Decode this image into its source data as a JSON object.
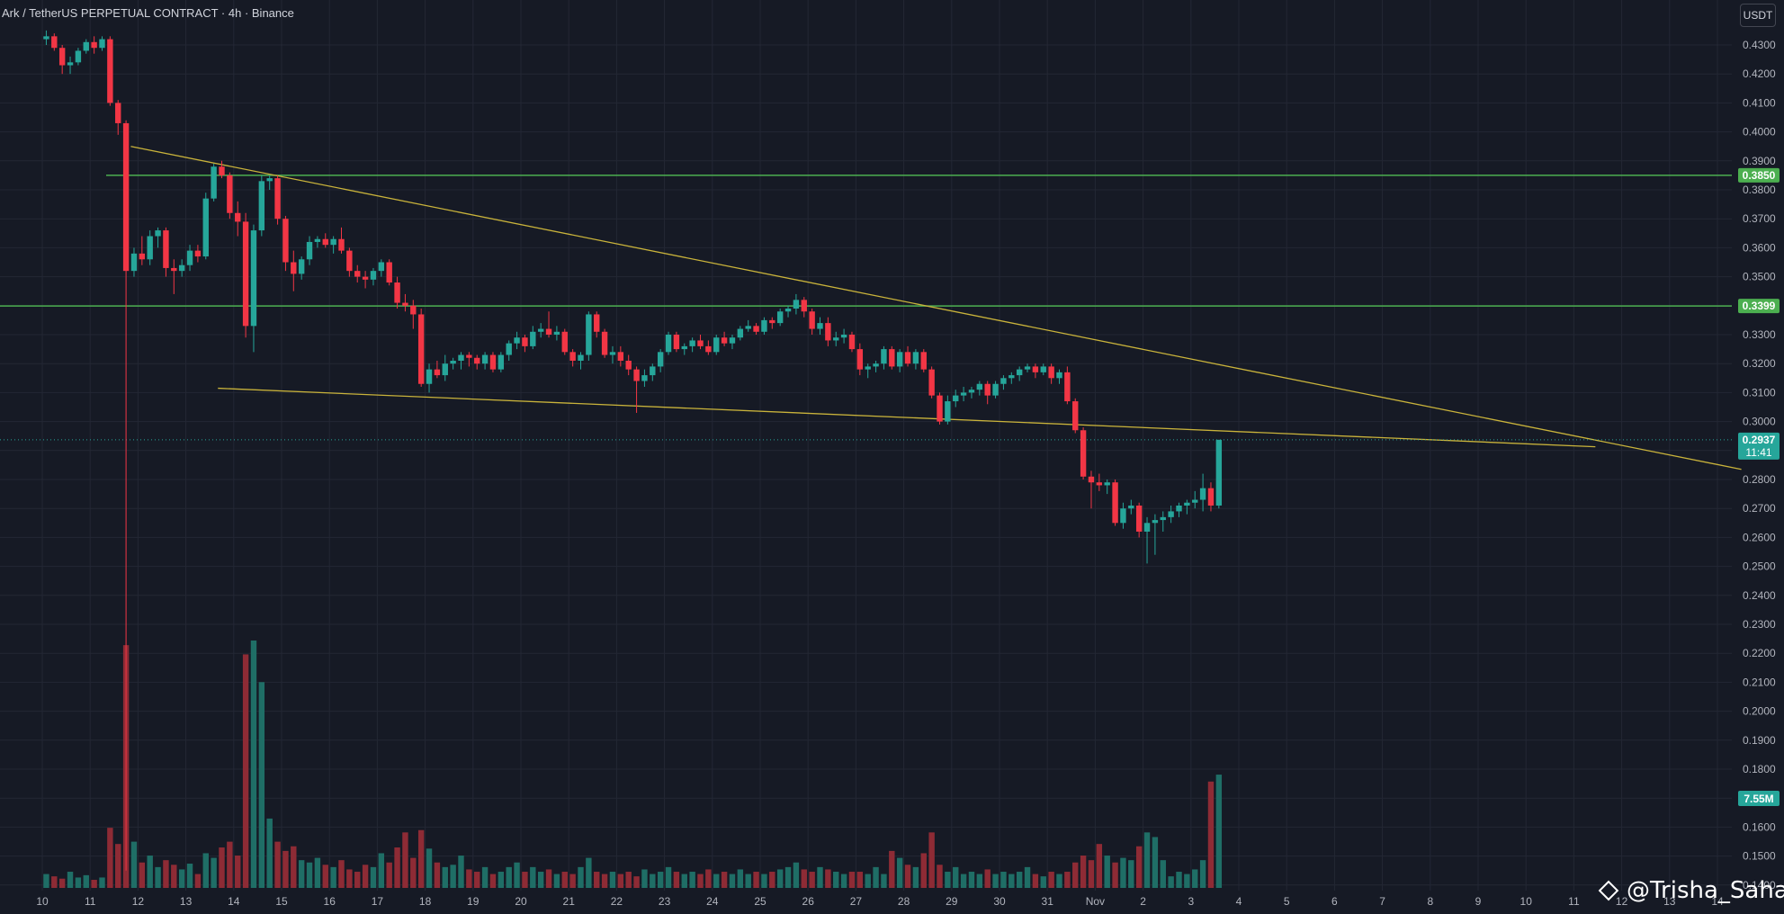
{
  "header": {
    "title": "Ark / TetherUS PERPETUAL CONTRACT · 4h · Binance"
  },
  "currency_badge": "USDT",
  "watermark": "@Trisha_Saha",
  "colors": {
    "background": "#161a25",
    "grid": "#232734",
    "up": "#26a69a",
    "down": "#f23645",
    "vol_up": "#1f6e66",
    "vol_down": "#8e2b35",
    "trendline": "#c9b33b",
    "level": "#4caf50",
    "axis_text": "#b2b5be",
    "current_price": "#26a69a"
  },
  "chart_data": {
    "type": "candlestick",
    "timeframe": "4h",
    "price_axis": {
      "ticks": [
        "0.4300",
        "0.4200",
        "0.4100",
        "0.4000",
        "0.3900",
        "0.3800",
        "0.3700",
        "0.3600",
        "0.3500",
        "0.3400",
        "0.3300",
        "0.3200",
        "0.3100",
        "0.3000",
        "0.2900",
        "0.2800",
        "0.2700",
        "0.2600",
        "0.2500",
        "0.2400",
        "0.2300",
        "0.2200",
        "0.2100",
        "0.2000",
        "0.1900",
        "0.1800",
        "0.1700",
        "0.1600",
        "0.1500",
        "0.1400"
      ],
      "range": [
        0.14,
        0.435
      ]
    },
    "time_axis": {
      "ticks": [
        "10",
        "11",
        "12",
        "13",
        "14",
        "15",
        "16",
        "17",
        "18",
        "19",
        "20",
        "21",
        "22",
        "23",
        "24",
        "25",
        "26",
        "27",
        "28",
        "29",
        "30",
        "31",
        "Nov",
        "2",
        "3",
        "4",
        "5",
        "6",
        "7",
        "8",
        "9",
        "10",
        "11",
        "12",
        "13",
        "14"
      ]
    },
    "levels": [
      {
        "price": 0.385,
        "label": "0.3850"
      },
      {
        "price": 0.3399,
        "label": "0.3399"
      }
    ],
    "current_price": {
      "value": 0.2937,
      "label": "0.2937",
      "countdown": "11:41"
    },
    "volume_label": "7.55M",
    "trendlines": [
      {
        "from": [
          1.85,
          0.395
        ],
        "to": [
          35.5,
          0.2835
        ]
      },
      {
        "from": [
          3.67,
          0.3115
        ],
        "to": [
          32.45,
          0.2913
        ]
      }
    ],
    "candles": [
      [
        0.432,
        0.435,
        0.43,
        0.433
      ],
      [
        0.433,
        0.434,
        0.428,
        0.429
      ],
      [
        0.429,
        0.43,
        0.42,
        0.423
      ],
      [
        0.423,
        0.426,
        0.42,
        0.424
      ],
      [
        0.424,
        0.429,
        0.423,
        0.428
      ],
      [
        0.428,
        0.432,
        0.427,
        0.431
      ],
      [
        0.431,
        0.433,
        0.427,
        0.429
      ],
      [
        0.429,
        0.433,
        0.428,
        0.432
      ],
      [
        0.432,
        0.433,
        0.409,
        0.41
      ],
      [
        0.41,
        0.411,
        0.399,
        0.403
      ],
      [
        0.403,
        0.404,
        0.145,
        0.352
      ],
      [
        0.352,
        0.36,
        0.35,
        0.358
      ],
      [
        0.358,
        0.364,
        0.354,
        0.356
      ],
      [
        0.356,
        0.366,
        0.354,
        0.364
      ],
      [
        0.364,
        0.367,
        0.36,
        0.366
      ],
      [
        0.366,
        0.367,
        0.35,
        0.353
      ],
      [
        0.353,
        0.356,
        0.344,
        0.352
      ],
      [
        0.352,
        0.356,
        0.35,
        0.354
      ],
      [
        0.354,
        0.361,
        0.352,
        0.359
      ],
      [
        0.359,
        0.361,
        0.355,
        0.357
      ],
      [
        0.357,
        0.379,
        0.356,
        0.377
      ],
      [
        0.377,
        0.389,
        0.376,
        0.388
      ],
      [
        0.388,
        0.39,
        0.384,
        0.385
      ],
      [
        0.385,
        0.386,
        0.37,
        0.372
      ],
      [
        0.372,
        0.376,
        0.364,
        0.369
      ],
      [
        0.369,
        0.372,
        0.329,
        0.333
      ],
      [
        0.333,
        0.368,
        0.324,
        0.366
      ],
      [
        0.366,
        0.385,
        0.364,
        0.383
      ],
      [
        0.383,
        0.385,
        0.38,
        0.384
      ],
      [
        0.384,
        0.385,
        0.368,
        0.37
      ],
      [
        0.37,
        0.371,
        0.352,
        0.355
      ],
      [
        0.355,
        0.359,
        0.345,
        0.351
      ],
      [
        0.351,
        0.357,
        0.349,
        0.356
      ],
      [
        0.356,
        0.364,
        0.354,
        0.362
      ],
      [
        0.362,
        0.364,
        0.36,
        0.363
      ],
      [
        0.363,
        0.365,
        0.36,
        0.361
      ],
      [
        0.361,
        0.364,
        0.358,
        0.363
      ],
      [
        0.363,
        0.367,
        0.358,
        0.359
      ],
      [
        0.359,
        0.36,
        0.35,
        0.352
      ],
      [
        0.352,
        0.354,
        0.348,
        0.35
      ],
      [
        0.35,
        0.352,
        0.346,
        0.349
      ],
      [
        0.349,
        0.353,
        0.347,
        0.352
      ],
      [
        0.352,
        0.356,
        0.35,
        0.355
      ],
      [
        0.355,
        0.356,
        0.347,
        0.348
      ],
      [
        0.348,
        0.35,
        0.339,
        0.341
      ],
      [
        0.341,
        0.344,
        0.338,
        0.34
      ],
      [
        0.34,
        0.342,
        0.332,
        0.337
      ],
      [
        0.337,
        0.339,
        0.312,
        0.313
      ],
      [
        0.313,
        0.32,
        0.31,
        0.318
      ],
      [
        0.318,
        0.321,
        0.315,
        0.316
      ],
      [
        0.316,
        0.323,
        0.314,
        0.32
      ],
      [
        0.32,
        0.322,
        0.318,
        0.321
      ],
      [
        0.321,
        0.324,
        0.318,
        0.323
      ],
      [
        0.323,
        0.324,
        0.319,
        0.322
      ],
      [
        0.322,
        0.323,
        0.318,
        0.32
      ],
      [
        0.32,
        0.324,
        0.318,
        0.323
      ],
      [
        0.323,
        0.324,
        0.317,
        0.318
      ],
      [
        0.318,
        0.324,
        0.317,
        0.323
      ],
      [
        0.323,
        0.328,
        0.321,
        0.327
      ],
      [
        0.327,
        0.331,
        0.325,
        0.329
      ],
      [
        0.329,
        0.33,
        0.324,
        0.326
      ],
      [
        0.326,
        0.333,
        0.325,
        0.331
      ],
      [
        0.331,
        0.334,
        0.329,
        0.332
      ],
      [
        0.332,
        0.338,
        0.329,
        0.33
      ],
      [
        0.33,
        0.333,
        0.328,
        0.331
      ],
      [
        0.331,
        0.332,
        0.323,
        0.324
      ],
      [
        0.324,
        0.325,
        0.319,
        0.321
      ],
      [
        0.321,
        0.324,
        0.318,
        0.323
      ],
      [
        0.323,
        0.338,
        0.321,
        0.337
      ],
      [
        0.337,
        0.338,
        0.329,
        0.331
      ],
      [
        0.331,
        0.332,
        0.322,
        0.323
      ],
      [
        0.323,
        0.326,
        0.32,
        0.324
      ],
      [
        0.324,
        0.326,
        0.319,
        0.321
      ],
      [
        0.321,
        0.323,
        0.316,
        0.318
      ],
      [
        0.318,
        0.319,
        0.303,
        0.314
      ],
      [
        0.314,
        0.318,
        0.312,
        0.316
      ],
      [
        0.316,
        0.32,
        0.314,
        0.319
      ],
      [
        0.319,
        0.325,
        0.317,
        0.324
      ],
      [
        0.324,
        0.331,
        0.323,
        0.33
      ],
      [
        0.33,
        0.331,
        0.324,
        0.325
      ],
      [
        0.325,
        0.327,
        0.323,
        0.326
      ],
      [
        0.326,
        0.329,
        0.324,
        0.328
      ],
      [
        0.328,
        0.33,
        0.325,
        0.326
      ],
      [
        0.326,
        0.328,
        0.323,
        0.324
      ],
      [
        0.324,
        0.33,
        0.323,
        0.329
      ],
      [
        0.329,
        0.331,
        0.326,
        0.327
      ],
      [
        0.327,
        0.33,
        0.325,
        0.329
      ],
      [
        0.329,
        0.333,
        0.328,
        0.332
      ],
      [
        0.332,
        0.335,
        0.331,
        0.333
      ],
      [
        0.333,
        0.334,
        0.33,
        0.331
      ],
      [
        0.331,
        0.336,
        0.33,
        0.335
      ],
      [
        0.335,
        0.336,
        0.332,
        0.334
      ],
      [
        0.334,
        0.339,
        0.333,
        0.338
      ],
      [
        0.338,
        0.34,
        0.336,
        0.339
      ],
      [
        0.339,
        0.344,
        0.337,
        0.342
      ],
      [
        0.342,
        0.343,
        0.336,
        0.338
      ],
      [
        0.338,
        0.339,
        0.33,
        0.332
      ],
      [
        0.332,
        0.336,
        0.33,
        0.334
      ],
      [
        0.334,
        0.336,
        0.326,
        0.328
      ],
      [
        0.328,
        0.331,
        0.326,
        0.329
      ],
      [
        0.329,
        0.332,
        0.327,
        0.33
      ],
      [
        0.33,
        0.331,
        0.324,
        0.325
      ],
      [
        0.325,
        0.327,
        0.316,
        0.318
      ],
      [
        0.318,
        0.32,
        0.315,
        0.319
      ],
      [
        0.319,
        0.321,
        0.317,
        0.32
      ],
      [
        0.32,
        0.326,
        0.318,
        0.325
      ],
      [
        0.325,
        0.326,
        0.318,
        0.319
      ],
      [
        0.319,
        0.325,
        0.317,
        0.324
      ],
      [
        0.324,
        0.326,
        0.319,
        0.32
      ],
      [
        0.32,
        0.325,
        0.318,
        0.324
      ],
      [
        0.324,
        0.325,
        0.317,
        0.318
      ],
      [
        0.318,
        0.319,
        0.308,
        0.309
      ],
      [
        0.309,
        0.31,
        0.299,
        0.3
      ],
      [
        0.3,
        0.309,
        0.299,
        0.307
      ],
      [
        0.307,
        0.311,
        0.305,
        0.309
      ],
      [
        0.309,
        0.312,
        0.307,
        0.31
      ],
      [
        0.31,
        0.312,
        0.308,
        0.311
      ],
      [
        0.311,
        0.314,
        0.309,
        0.313
      ],
      [
        0.313,
        0.314,
        0.306,
        0.309
      ],
      [
        0.309,
        0.314,
        0.308,
        0.313
      ],
      [
        0.313,
        0.316,
        0.311,
        0.315
      ],
      [
        0.315,
        0.317,
        0.313,
        0.316
      ],
      [
        0.316,
        0.319,
        0.314,
        0.318
      ],
      [
        0.318,
        0.32,
        0.317,
        0.319
      ],
      [
        0.319,
        0.32,
        0.315,
        0.317
      ],
      [
        0.317,
        0.32,
        0.316,
        0.319
      ],
      [
        0.319,
        0.32,
        0.313,
        0.315
      ],
      [
        0.315,
        0.318,
        0.313,
        0.317
      ],
      [
        0.317,
        0.319,
        0.306,
        0.307
      ],
      [
        0.307,
        0.308,
        0.296,
        0.297
      ],
      [
        0.297,
        0.298,
        0.28,
        0.281
      ],
      [
        0.281,
        0.283,
        0.27,
        0.279
      ],
      [
        0.279,
        0.282,
        0.276,
        0.278
      ],
      [
        0.278,
        0.28,
        0.275,
        0.279
      ],
      [
        0.279,
        0.28,
        0.264,
        0.265
      ],
      [
        0.265,
        0.272,
        0.263,
        0.27
      ],
      [
        0.27,
        0.273,
        0.268,
        0.271
      ],
      [
        0.271,
        0.272,
        0.26,
        0.262
      ],
      [
        0.262,
        0.267,
        0.251,
        0.265
      ],
      [
        0.265,
        0.268,
        0.254,
        0.266
      ],
      [
        0.266,
        0.269,
        0.262,
        0.267
      ],
      [
        0.267,
        0.271,
        0.265,
        0.269
      ],
      [
        0.269,
        0.272,
        0.267,
        0.271
      ],
      [
        0.271,
        0.273,
        0.268,
        0.272
      ],
      [
        0.272,
        0.276,
        0.27,
        0.273
      ],
      [
        0.273,
        0.282,
        0.269,
        0.277
      ],
      [
        0.277,
        0.279,
        0.269,
        0.271
      ],
      [
        0.271,
        0.2937,
        0.27,
        0.2937
      ]
    ],
    "volumes": [
      12,
      10,
      8,
      14,
      9,
      11,
      7,
      9,
      52,
      38,
      210,
      40,
      22,
      28,
      18,
      24,
      20,
      16,
      21,
      12,
      30,
      26,
      35,
      40,
      28,
      202,
      214,
      178,
      60,
      40,
      32,
      36,
      24,
      22,
      26,
      20,
      18,
      24,
      16,
      14,
      20,
      18,
      30,
      22,
      35,
      48,
      26,
      50,
      34,
      22,
      18,
      20,
      28,
      16,
      14,
      18,
      12,
      14,
      18,
      22,
      14,
      18,
      14,
      16,
      12,
      14,
      12,
      18,
      26,
      14,
      12,
      14,
      12,
      14,
      10,
      16,
      12,
      14,
      18,
      14,
      12,
      14,
      12,
      16,
      12,
      14,
      12,
      16,
      12,
      14,
      12,
      14,
      16,
      18,
      22,
      16,
      14,
      18,
      16,
      14,
      12,
      14,
      14,
      12,
      18,
      12,
      32,
      26,
      20,
      18,
      30,
      48,
      20,
      14,
      18,
      12,
      14,
      12,
      16,
      12,
      14,
      12,
      14,
      18,
      12,
      10,
      14,
      12,
      14,
      22,
      28,
      24,
      38,
      28,
      22,
      26,
      24,
      36,
      48,
      44,
      24,
      10,
      14,
      12,
      16,
      24,
      92,
      98
    ]
  }
}
